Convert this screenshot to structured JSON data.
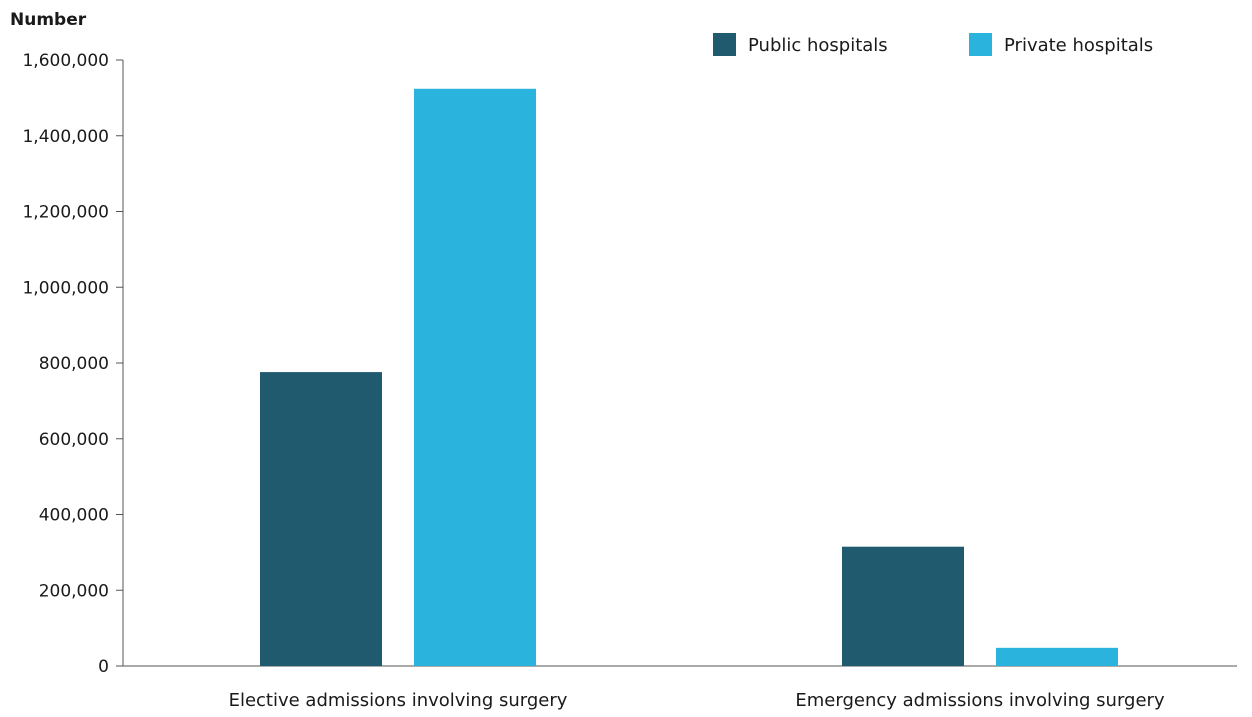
{
  "chart_data": {
    "type": "bar",
    "ylabel": "Number",
    "xlabel": "",
    "categories": [
      "Elective admissions involving surgery",
      "Emergency admissions involving surgery"
    ],
    "series": [
      {
        "name": "Public hospitals",
        "color": "#1f5a6e",
        "values": [
          776000,
          315000
        ]
      },
      {
        "name": "Private hospitals",
        "color": "#29b3dd",
        "values": [
          1524000,
          48000
        ]
      }
    ],
    "ylim": [
      0,
      1600000
    ],
    "yticks": [
      0,
      200000,
      400000,
      600000,
      800000,
      1000000,
      1200000,
      1400000,
      1600000
    ],
    "ytick_labels": [
      "0",
      "200,000",
      "400,000",
      "600,000",
      "800,000",
      "1,000,000",
      "1,200,000",
      "1,400,000",
      "1,600,000"
    ],
    "grid": false,
    "legend_position": "top-right"
  }
}
